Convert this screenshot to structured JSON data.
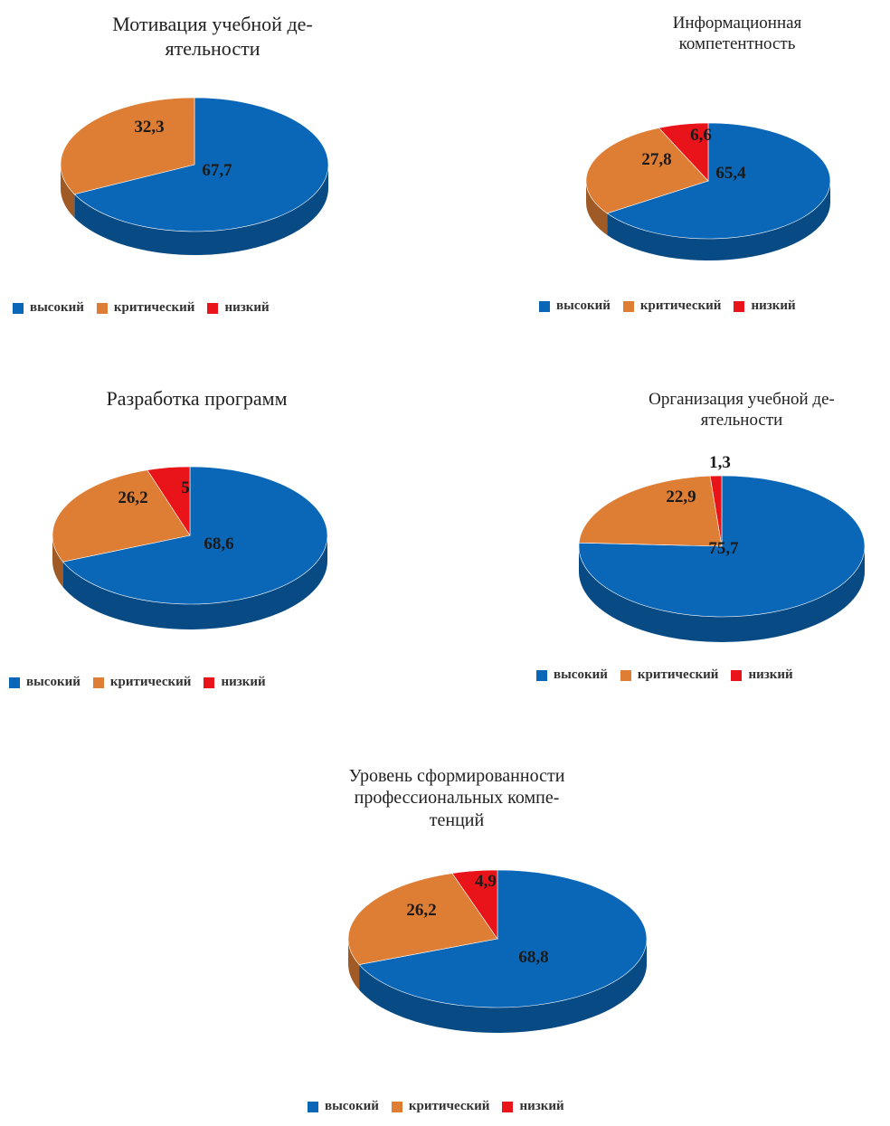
{
  "colors": {
    "high": "#0a67b8",
    "critical": "#de7d34",
    "low": "#e8141a"
  },
  "legend_labels": [
    "высокий",
    "критический",
    "низкий"
  ],
  "chart_data": [
    {
      "type": "pie",
      "title_lines": [
        "Мотивация учебной де-",
        "ятельности"
      ],
      "labels": [
        "высокий",
        "критический",
        "низкий"
      ],
      "values": [
        67.7,
        32.3,
        0
      ],
      "value_labels": [
        "67,7",
        "32,3",
        ""
      ],
      "legend": "bottom"
    },
    {
      "type": "pie",
      "title_lines": [
        "Информационная",
        "компетентность"
      ],
      "labels": [
        "высокий",
        "критический",
        "низкий"
      ],
      "values": [
        65.4,
        27.8,
        6.6
      ],
      "value_labels": [
        "65,4",
        "27,8",
        "6,6"
      ],
      "legend": "bottom"
    },
    {
      "type": "pie",
      "title_lines": [
        "Разработка программ"
      ],
      "labels": [
        "высокий",
        "критический",
        "низкий"
      ],
      "values": [
        68.6,
        26.2,
        5
      ],
      "value_labels": [
        "68,6",
        "26,2",
        "5"
      ],
      "legend": "bottom"
    },
    {
      "type": "pie",
      "title_lines": [
        "Организация учебной де-",
        "ятельности"
      ],
      "labels": [
        "высокий",
        "критический",
        "низкий"
      ],
      "values": [
        75.7,
        22.9,
        1.3
      ],
      "value_labels": [
        "75,7",
        "22,9",
        "1,3"
      ],
      "legend": "bottom"
    },
    {
      "type": "pie",
      "title_lines": [
        "Уровень сформированности",
        "профессиональных компе-",
        "тенций"
      ],
      "labels": [
        "высокий",
        "критический",
        "низкий"
      ],
      "values": [
        68.8,
        26.2,
        4.9
      ],
      "value_labels": [
        "68,8",
        "26,2",
        "4,9"
      ],
      "legend": "bottom"
    }
  ]
}
